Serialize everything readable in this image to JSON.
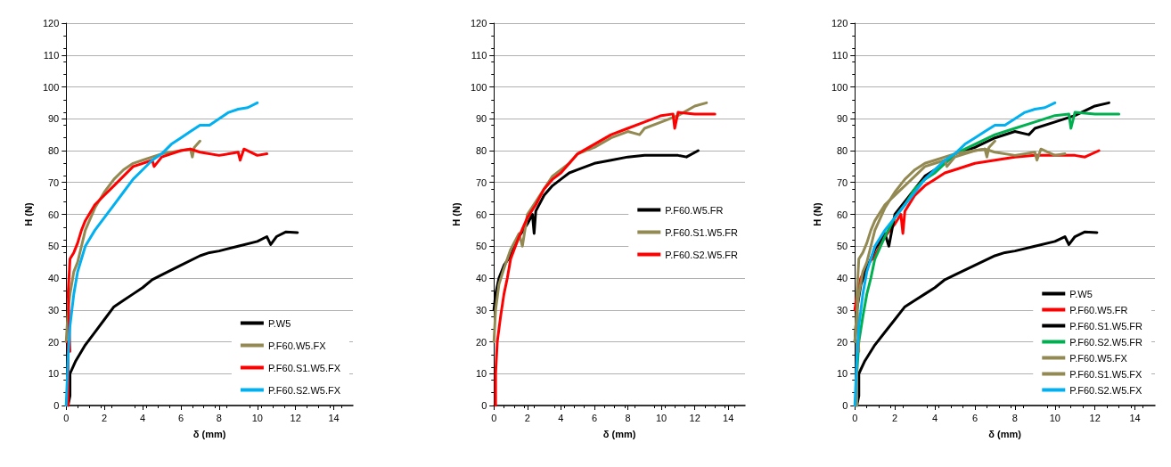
{
  "chart_data": [
    {
      "type": "line",
      "xlabel": "δ (mm)",
      "ylabel": "H (N)",
      "xlim": [
        0,
        15
      ],
      "xticks": [
        0,
        2,
        4,
        6,
        8,
        10,
        12,
        14
      ],
      "ylim": [
        0,
        120
      ],
      "yticks": [
        0,
        10,
        20,
        30,
        40,
        50,
        60,
        70,
        80,
        90,
        100,
        110,
        120
      ],
      "grid": "y",
      "legend": "bottom right",
      "marker": "none",
      "line_style": "solid",
      "series": [
        {
          "name": "P.W5",
          "color": "#000000",
          "x": [
            0.1,
            0.2,
            0.2,
            0.5,
            1,
            1.5,
            2,
            2.5,
            3,
            3.5,
            4,
            4.5,
            5,
            6,
            7,
            7.5,
            8,
            9,
            10,
            10.5,
            10.7,
            11,
            11.5,
            12.1
          ],
          "values": [
            0,
            3,
            10,
            14,
            19,
            23,
            27,
            31,
            33,
            35,
            37,
            39.5,
            41,
            44,
            47,
            48,
            48.5,
            50,
            51.5,
            53,
            50.5,
            53,
            54.5,
            54.3
          ]
        },
        {
          "name": "P.F60.W5.FX",
          "color": "#938953",
          "x": [
            0,
            0.1,
            0.2,
            0.4,
            0.6,
            0.8,
            1,
            1.5,
            2,
            2.5,
            3,
            3.5,
            4,
            4.5,
            5,
            5.5,
            6,
            6.5,
            6.6,
            6.7,
            7
          ],
          "values": [
            20,
            30,
            35,
            42,
            45,
            50,
            55,
            62,
            67,
            71,
            74,
            76,
            77,
            78,
            79,
            79.5,
            80,
            80.5,
            78,
            81,
            83
          ]
        },
        {
          "name": "P.F60.S1.W5.FX",
          "color": "#ff0000",
          "x": [
            0.1,
            0.1,
            0.2,
            0.1,
            0.2,
            0.4,
            0.6,
            0.8,
            1,
            1.5,
            2,
            2.5,
            3,
            3.5,
            4,
            4.5,
            4.6,
            5,
            6,
            6.5,
            7,
            8,
            9,
            9.1,
            9.3,
            10,
            10.5
          ],
          "values": [
            0,
            20,
            17,
            35,
            46,
            48,
            51,
            55,
            58,
            63,
            66,
            69,
            72,
            75,
            76,
            77,
            75,
            78,
            80,
            80.5,
            79.5,
            78.5,
            79.5,
            77,
            80.5,
            78.5,
            79
          ]
        },
        {
          "name": "P.F60.S2.W5.FX",
          "color": "#00b0f0",
          "x": [
            0,
            0.1,
            0.2,
            0.4,
            0.6,
            1,
            1.5,
            2,
            2.5,
            3,
            3.5,
            4,
            4.5,
            5,
            5.5,
            6,
            6.5,
            7,
            7.5,
            8,
            8.5,
            9,
            9.5,
            10
          ],
          "values": [
            0,
            15,
            25,
            35,
            42,
            50,
            55,
            59,
            63,
            67,
            71,
            74,
            77,
            79,
            82,
            84,
            86,
            88,
            88,
            90,
            92,
            93,
            93.5,
            95
          ]
        }
      ]
    },
    {
      "type": "line",
      "xlabel": "δ (mm)",
      "ylabel": "H (N)",
      "xlim": [
        0,
        15
      ],
      "xticks": [
        0,
        2,
        4,
        6,
        8,
        10,
        12,
        14
      ],
      "ylim": [
        0,
        120
      ],
      "yticks": [
        0,
        10,
        20,
        30,
        40,
        50,
        60,
        70,
        80,
        90,
        100,
        110,
        120
      ],
      "grid": "y",
      "legend": "right",
      "marker": "none",
      "line_style": "solid",
      "series": [
        {
          "name": "P.F60.W5.FR",
          "color": "#000000",
          "x": [
            0,
            0.1,
            0.3,
            0.6,
            1,
            1.5,
            2,
            2.3,
            2.4,
            2.5,
            3,
            3.5,
            4,
            4.5,
            5,
            6,
            7,
            8,
            9,
            10,
            11,
            11.5,
            12.2
          ],
          "values": [
            30,
            35,
            40,
            44,
            47,
            53,
            57,
            60,
            54,
            61,
            66,
            69,
            71,
            73,
            74,
            76,
            77,
            78,
            78.5,
            78.5,
            78.5,
            78,
            80
          ]
        },
        {
          "name": "P.F60.S1.W5.FR",
          "color": "#938953",
          "x": [
            0,
            0.1,
            0.3,
            0.6,
            1,
            1.5,
            1.7,
            2,
            2.5,
            3,
            3.5,
            4,
            4.5,
            5,
            6,
            7,
            8,
            8.7,
            9,
            10,
            11,
            12,
            12.7
          ],
          "values": [
            20,
            30,
            38,
            43,
            49,
            54,
            50,
            60,
            64,
            68,
            72,
            74,
            76,
            79,
            81,
            84,
            86,
            85,
            87,
            89,
            91,
            94,
            95
          ]
        },
        {
          "name": "P.F60.S2.W5.FR",
          "color": "#ff0000",
          "x": [
            0.1,
            0.1,
            0.2,
            0.4,
            0.6,
            0.8,
            1,
            1.5,
            2,
            2.5,
            3,
            3.5,
            4,
            4.5,
            5,
            6,
            7,
            8,
            9,
            10,
            10.7,
            10.8,
            11,
            12,
            13.2
          ],
          "values": [
            0,
            10,
            20,
            28,
            35,
            40,
            46,
            53,
            59,
            63,
            68,
            71,
            73,
            76,
            79,
            82,
            85,
            87,
            89,
            91,
            91.5,
            87,
            92,
            91.5,
            91.5
          ]
        }
      ]
    },
    {
      "type": "line",
      "xlabel": "δ (mm)",
      "ylabel": "H (N)",
      "xlim": [
        0,
        15
      ],
      "xticks": [
        0,
        2,
        4,
        6,
        8,
        10,
        12,
        14
      ],
      "ylim": [
        0,
        120
      ],
      "yticks": [
        0,
        10,
        20,
        30,
        40,
        50,
        60,
        70,
        80,
        90,
        100,
        110,
        120
      ],
      "grid": "y",
      "legend": "bottom right",
      "marker": "none",
      "line_style": "solid",
      "series": [
        {
          "name": "P.W5",
          "color": "#000000",
          "x": [
            0.1,
            0.2,
            0.2,
            0.5,
            1,
            1.5,
            2,
            2.5,
            3,
            3.5,
            4,
            4.5,
            5,
            6,
            7,
            7.5,
            8,
            9,
            10,
            10.5,
            10.7,
            11,
            11.5,
            12.1
          ],
          "values": [
            0,
            3,
            10,
            14,
            19,
            23,
            27,
            31,
            33,
            35,
            37,
            39.5,
            41,
            44,
            47,
            48,
            48.5,
            50,
            51.5,
            53,
            50.5,
            53,
            54.5,
            54.3
          ]
        },
        {
          "name": "P.F60.W5.FR",
          "color": "#ff0000",
          "x": [
            0,
            0.1,
            0.3,
            0.6,
            1,
            1.5,
            2,
            2.3,
            2.4,
            2.5,
            3,
            3.5,
            4,
            4.5,
            5,
            6,
            7,
            8,
            9,
            10,
            11,
            11.5,
            12.2
          ],
          "values": [
            30,
            35,
            40,
            44,
            47,
            53,
            57,
            60,
            54,
            61,
            66,
            69,
            71,
            73,
            74,
            76,
            77,
            78,
            78.5,
            78.5,
            78.5,
            78,
            80
          ]
        },
        {
          "name": "P.F60.S1.W5.FR",
          "color": "#000000",
          "x": [
            0,
            0.1,
            0.3,
            0.6,
            1,
            1.5,
            1.7,
            2,
            2.5,
            3,
            3.5,
            4,
            4.5,
            5,
            6,
            7,
            8,
            8.7,
            9,
            10,
            11,
            12,
            12.7
          ],
          "values": [
            20,
            30,
            38,
            43,
            49,
            54,
            50,
            60,
            64,
            68,
            72,
            74,
            76,
            79,
            81,
            84,
            86,
            85,
            87,
            89,
            91,
            94,
            95
          ]
        },
        {
          "name": "P.F60.S2.W5.FR",
          "color": "#00b050",
          "x": [
            0.1,
            0.1,
            0.2,
            0.4,
            0.6,
            0.8,
            1,
            1.5,
            2,
            2.5,
            3,
            3.5,
            4,
            4.5,
            5,
            6,
            7,
            8,
            9,
            10,
            10.7,
            10.8,
            11,
            12,
            13.2
          ],
          "values": [
            0,
            10,
            20,
            28,
            35,
            40,
            46,
            53,
            59,
            63,
            68,
            71,
            73,
            76,
            79,
            82,
            85,
            87,
            89,
            91,
            91.5,
            87,
            92,
            91.5,
            91.5
          ]
        },
        {
          "name": "P.F60.W5.FX",
          "color": "#938953",
          "x": [
            0,
            0.1,
            0.2,
            0.4,
            0.6,
            0.8,
            1,
            1.5,
            2,
            2.5,
            3,
            3.5,
            4,
            4.5,
            5,
            5.5,
            6,
            6.5,
            6.6,
            6.7,
            7
          ],
          "values": [
            20,
            30,
            35,
            42,
            45,
            50,
            55,
            62,
            67,
            71,
            74,
            76,
            77,
            78,
            79,
            79.5,
            80,
            80.5,
            78,
            81,
            83
          ]
        },
        {
          "name": "P.F60.S1.W5.FX",
          "color": "#938953",
          "x": [
            0.1,
            0.1,
            0.2,
            0.1,
            0.2,
            0.4,
            0.6,
            0.8,
            1,
            1.5,
            2,
            2.5,
            3,
            3.5,
            4,
            4.5,
            4.6,
            5,
            6,
            6.5,
            7,
            8,
            9,
            9.1,
            9.3,
            10,
            10.5
          ],
          "values": [
            0,
            20,
            17,
            35,
            46,
            48,
            51,
            55,
            58,
            63,
            66,
            69,
            72,
            75,
            76,
            77,
            75,
            78,
            80,
            80.5,
            79.5,
            78.5,
            79.5,
            77,
            80.5,
            78.5,
            79
          ]
        },
        {
          "name": "P.F60.S2.W5.FX",
          "color": "#00b0f0",
          "x": [
            0,
            0.1,
            0.2,
            0.4,
            0.6,
            1,
            1.5,
            2,
            2.5,
            3,
            3.5,
            4,
            4.5,
            5,
            5.5,
            6,
            6.5,
            7,
            7.5,
            8,
            8.5,
            9,
            9.5,
            10
          ],
          "values": [
            0,
            15,
            25,
            35,
            42,
            50,
            55,
            59,
            63,
            67,
            71,
            74,
            77,
            79,
            82,
            84,
            86,
            88,
            88,
            90,
            92,
            93,
            93.5,
            95
          ]
        }
      ]
    }
  ]
}
